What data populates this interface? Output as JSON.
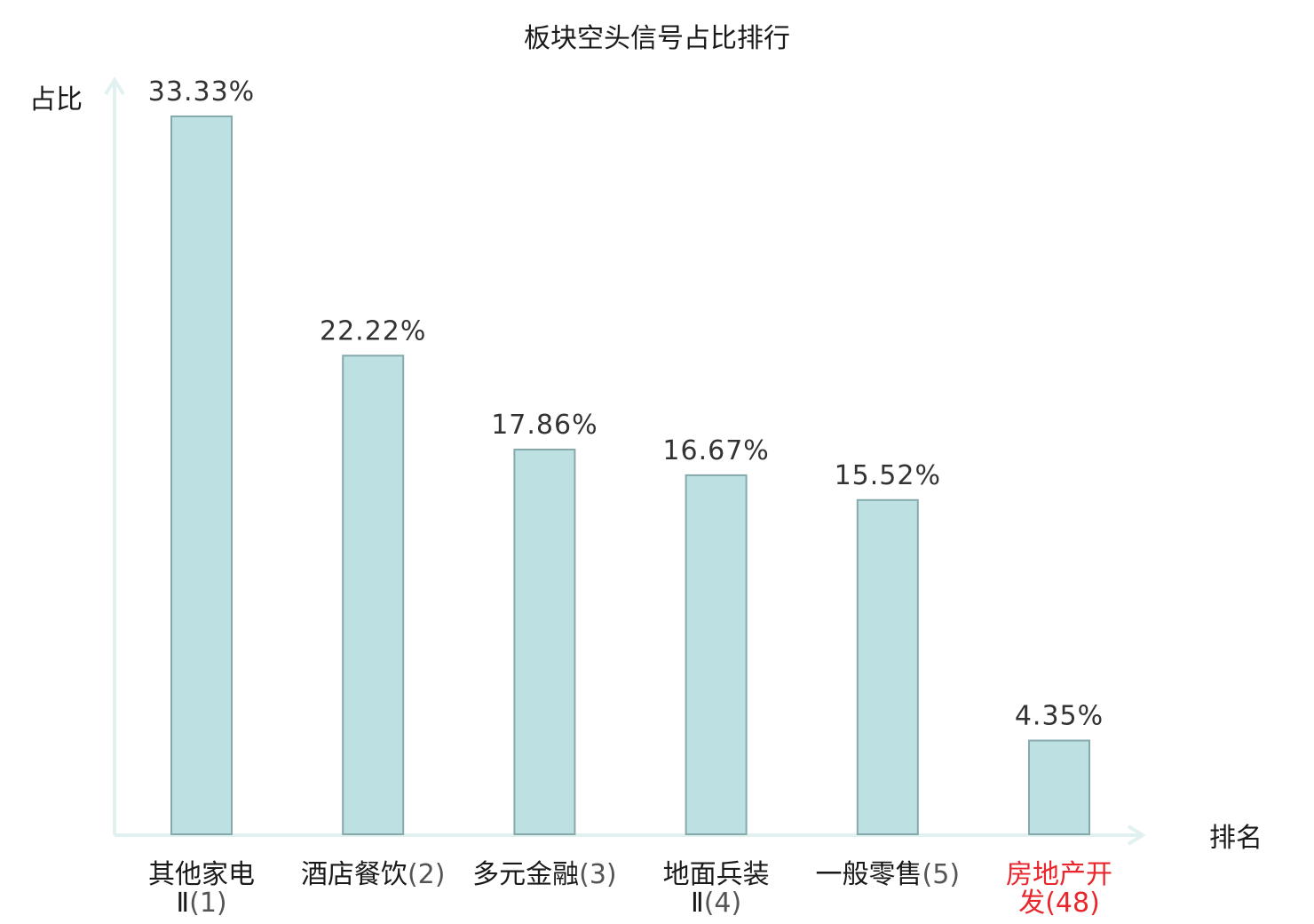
{
  "chart_data": {
    "type": "bar",
    "title": "板块空头信号占比排行",
    "xlabel": "排名",
    "ylabel": "占比",
    "categories": [
      {
        "lines": [
          "其他家电",
          "Ⅱ(1)"
        ],
        "highlight": false
      },
      {
        "lines": [
          "酒店餐饮(2)"
        ],
        "highlight": false
      },
      {
        "lines": [
          "多元金融(3)"
        ],
        "highlight": false
      },
      {
        "lines": [
          "地面兵装",
          "Ⅱ(4)"
        ],
        "highlight": false
      },
      {
        "lines": [
          "一般零售(5)"
        ],
        "highlight": false
      },
      {
        "lines": [
          "房地产开",
          "发(48)"
        ],
        "highlight": true
      }
    ],
    "values": [
      33.33,
      22.22,
      17.86,
      16.67,
      15.52,
      4.35
    ],
    "value_labels": [
      "33.33%",
      "22.22%",
      "17.86%",
      "16.67%",
      "15.52%",
      "4.35%"
    ],
    "ylim": [
      0,
      33.33
    ],
    "grid": false,
    "legend": "none",
    "colors": {
      "bar_fill": "#bde0e3",
      "bar_stroke": "#86a9ab",
      "axis": "#e0f1ef",
      "highlight_text": "#e8262b"
    }
  }
}
